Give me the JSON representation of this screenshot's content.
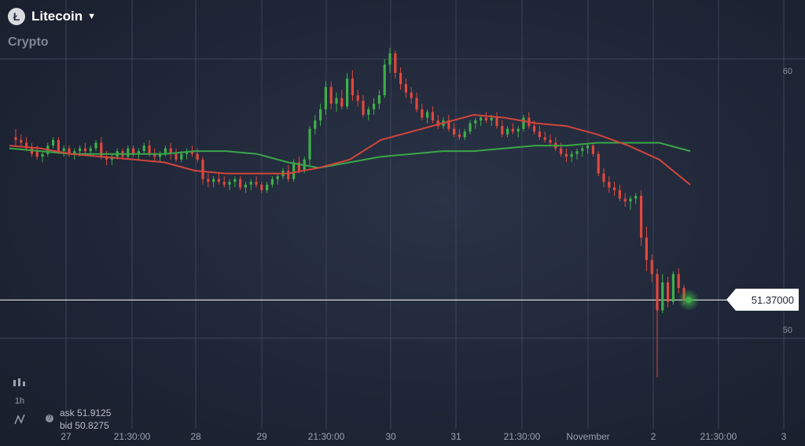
{
  "header": {
    "asset": "Litecoin",
    "category": "Crypto",
    "icon": "litecoin-icon"
  },
  "current_price": "51.37000",
  "quote": {
    "ask_label": "ask",
    "ask": "51.9125",
    "bid_label": "bid",
    "bid": "50.8275"
  },
  "toolbar": {
    "chart_type_icon": "candles-icon",
    "timeframe": "1h",
    "indicator_icon": "indicator-icon"
  },
  "colors": {
    "up": "#3fae49",
    "down": "#e0483c",
    "ma_fast": "#d2453a",
    "ma_slow": "#3aa648",
    "price_line": "#ffffff"
  },
  "chart_data": {
    "type": "candlestick",
    "y_ticks": [
      "60",
      "50"
    ],
    "x_ticks": [
      "27",
      "21:30:00",
      "28",
      "29",
      "21:30:00",
      "30",
      "31",
      "21:30:00",
      "November",
      "2",
      "21:30:00",
      "3"
    ],
    "current_price": 51.37,
    "ma_fast": [
      56.9,
      56.8,
      56.6,
      56.5,
      56.4,
      56.3,
      56.0,
      55.9,
      55.9,
      55.9,
      56.1,
      56.4,
      57.1,
      57.4,
      57.7,
      58.0,
      57.9,
      57.7,
      57.6,
      57.3,
      56.9,
      56.4,
      55.5
    ],
    "ma_slow": [
      56.8,
      56.7,
      56.6,
      56.6,
      56.6,
      56.6,
      56.7,
      56.7,
      56.6,
      56.3,
      56.1,
      56.3,
      56.5,
      56.6,
      56.7,
      56.7,
      56.8,
      56.9,
      56.9,
      57.0,
      57.0,
      57.0,
      56.7
    ],
    "candles": [
      [
        57.2,
        57.5,
        56.9,
        57.1
      ],
      [
        57.1,
        57.3,
        56.9,
        57.0
      ],
      [
        57.0,
        57.2,
        56.7,
        56.8
      ],
      [
        56.8,
        57.0,
        56.5,
        56.6
      ],
      [
        56.7,
        56.9,
        56.4,
        56.5
      ],
      [
        56.5,
        56.7,
        56.3,
        56.6
      ],
      [
        56.6,
        57.0,
        56.5,
        56.9
      ],
      [
        56.9,
        57.2,
        56.8,
        57.1
      ],
      [
        57.1,
        57.2,
        56.6,
        56.7
      ],
      [
        56.7,
        56.9,
        56.5,
        56.8
      ],
      [
        56.8,
        56.9,
        56.5,
        56.6
      ],
      [
        56.6,
        56.8,
        56.4,
        56.7
      ],
      [
        56.7,
        56.9,
        56.5,
        56.8
      ],
      [
        56.8,
        57.0,
        56.6,
        56.7
      ],
      [
        56.7,
        56.9,
        56.5,
        56.8
      ],
      [
        56.8,
        57.1,
        56.7,
        57.0
      ],
      [
        57.0,
        57.2,
        56.4,
        56.5
      ],
      [
        56.5,
        56.7,
        56.2,
        56.4
      ],
      [
        56.4,
        56.6,
        56.2,
        56.5
      ],
      [
        56.5,
        56.8,
        56.4,
        56.7
      ],
      [
        56.7,
        56.8,
        56.4,
        56.5
      ],
      [
        56.5,
        56.9,
        56.4,
        56.8
      ],
      [
        56.8,
        56.9,
        56.5,
        56.6
      ],
      [
        56.6,
        56.8,
        56.4,
        56.7
      ],
      [
        56.7,
        57.0,
        56.6,
        56.9
      ],
      [
        56.9,
        57.1,
        56.5,
        56.6
      ],
      [
        56.6,
        56.8,
        56.3,
        56.5
      ],
      [
        56.5,
        56.7,
        56.3,
        56.6
      ],
      [
        56.6,
        56.9,
        56.5,
        56.8
      ],
      [
        56.8,
        57.0,
        56.4,
        56.6
      ],
      [
        56.6,
        56.8,
        56.3,
        56.4
      ],
      [
        56.4,
        56.7,
        56.3,
        56.6
      ],
      [
        56.6,
        56.8,
        56.4,
        56.7
      ],
      [
        56.7,
        56.9,
        56.5,
        56.6
      ],
      [
        56.6,
        56.8,
        56.3,
        56.4
      ],
      [
        56.4,
        56.5,
        55.5,
        55.7
      ],
      [
        55.7,
        55.9,
        55.4,
        55.6
      ],
      [
        55.6,
        55.8,
        55.4,
        55.7
      ],
      [
        55.7,
        55.9,
        55.5,
        55.6
      ],
      [
        55.6,
        55.8,
        55.4,
        55.5
      ],
      [
        55.5,
        55.7,
        55.3,
        55.6
      ],
      [
        55.6,
        55.8,
        55.4,
        55.7
      ],
      [
        55.7,
        55.8,
        55.3,
        55.4
      ],
      [
        55.4,
        55.6,
        55.2,
        55.5
      ],
      [
        55.5,
        55.7,
        55.3,
        55.6
      ],
      [
        55.6,
        55.8,
        55.4,
        55.5
      ],
      [
        55.5,
        55.6,
        55.2,
        55.3
      ],
      [
        55.3,
        55.6,
        55.2,
        55.5
      ],
      [
        55.5,
        55.8,
        55.4,
        55.7
      ],
      [
        55.7,
        55.9,
        55.5,
        55.8
      ],
      [
        55.8,
        56.1,
        55.7,
        56.0
      ],
      [
        56.0,
        56.2,
        55.6,
        55.7
      ],
      [
        55.7,
        56.4,
        55.6,
        56.3
      ],
      [
        56.3,
        56.5,
        55.9,
        56.0
      ],
      [
        56.0,
        56.5,
        55.9,
        56.4
      ],
      [
        56.4,
        57.6,
        56.2,
        57.5
      ],
      [
        57.5,
        58.0,
        57.3,
        57.8
      ],
      [
        57.8,
        58.4,
        57.6,
        58.2
      ],
      [
        58.2,
        59.2,
        58.0,
        59.0
      ],
      [
        59.0,
        59.2,
        58.2,
        58.4
      ],
      [
        58.4,
        58.8,
        58.1,
        58.6
      ],
      [
        58.6,
        58.9,
        58.2,
        58.3
      ],
      [
        58.3,
        59.5,
        58.2,
        59.3
      ],
      [
        59.3,
        59.6,
        58.5,
        58.7
      ],
      [
        58.7,
        58.9,
        58.3,
        58.5
      ],
      [
        58.5,
        58.7,
        57.9,
        58.0
      ],
      [
        58.0,
        58.3,
        57.8,
        58.2
      ],
      [
        58.2,
        58.6,
        58.0,
        58.4
      ],
      [
        58.4,
        58.9,
        58.2,
        58.7
      ],
      [
        58.7,
        60.0,
        58.6,
        59.8
      ],
      [
        59.8,
        60.4,
        59.5,
        60.2
      ],
      [
        60.2,
        60.3,
        59.3,
        59.5
      ],
      [
        59.5,
        59.7,
        58.9,
        59.1
      ],
      [
        59.1,
        59.3,
        58.6,
        58.8
      ],
      [
        58.8,
        59.0,
        58.4,
        58.6
      ],
      [
        58.6,
        58.8,
        58.1,
        58.2
      ],
      [
        58.2,
        58.4,
        57.8,
        57.9
      ],
      [
        57.9,
        58.2,
        57.7,
        58.1
      ],
      [
        58.1,
        58.3,
        57.7,
        57.8
      ],
      [
        57.8,
        58.0,
        57.5,
        57.6
      ],
      [
        57.6,
        57.9,
        57.5,
        57.8
      ],
      [
        57.8,
        58.0,
        57.4,
        57.5
      ],
      [
        57.5,
        57.7,
        57.2,
        57.3
      ],
      [
        57.3,
        57.5,
        57.1,
        57.2
      ],
      [
        57.2,
        57.5,
        57.1,
        57.4
      ],
      [
        57.4,
        57.8,
        57.3,
        57.7
      ],
      [
        57.7,
        57.9,
        57.5,
        57.8
      ],
      [
        57.8,
        58.0,
        57.6,
        57.9
      ],
      [
        57.9,
        58.1,
        57.7,
        57.8
      ],
      [
        57.8,
        58.0,
        57.6,
        57.9
      ],
      [
        57.9,
        58.1,
        57.5,
        57.6
      ],
      [
        57.6,
        57.8,
        57.2,
        57.3
      ],
      [
        57.3,
        57.6,
        57.2,
        57.5
      ],
      [
        57.5,
        57.7,
        57.3,
        57.4
      ],
      [
        57.4,
        57.6,
        57.2,
        57.5
      ],
      [
        57.5,
        58.0,
        57.4,
        57.9
      ],
      [
        57.9,
        58.1,
        57.5,
        57.6
      ],
      [
        57.6,
        57.8,
        57.3,
        57.4
      ],
      [
        57.4,
        57.6,
        57.1,
        57.2
      ],
      [
        57.2,
        57.4,
        57.0,
        57.1
      ],
      [
        57.1,
        57.3,
        56.9,
        57.0
      ],
      [
        57.0,
        57.2,
        56.7,
        56.8
      ],
      [
        56.8,
        57.0,
        56.5,
        56.6
      ],
      [
        56.6,
        56.8,
        56.3,
        56.5
      ],
      [
        56.5,
        56.7,
        56.3,
        56.6
      ],
      [
        56.6,
        56.8,
        56.4,
        56.7
      ],
      [
        56.7,
        56.9,
        56.5,
        56.8
      ],
      [
        56.8,
        57.0,
        56.6,
        56.9
      ],
      [
        56.9,
        57.0,
        56.5,
        56.6
      ],
      [
        56.6,
        56.7,
        55.8,
        55.9
      ],
      [
        55.9,
        56.1,
        55.4,
        55.6
      ],
      [
        55.6,
        55.8,
        55.2,
        55.4
      ],
      [
        55.4,
        55.6,
        55.1,
        55.3
      ],
      [
        55.3,
        55.5,
        54.9,
        55.0
      ],
      [
        55.0,
        55.2,
        54.7,
        54.9
      ],
      [
        54.9,
        55.1,
        54.6,
        55.0
      ],
      [
        55.0,
        55.2,
        54.8,
        55.1
      ],
      [
        55.1,
        55.3,
        53.3,
        53.6
      ],
      [
        53.6,
        54.0,
        52.4,
        52.8
      ],
      [
        52.8,
        53.0,
        52.0,
        52.3
      ],
      [
        52.3,
        52.5,
        48.6,
        51.0
      ],
      [
        51.0,
        52.3,
        50.9,
        52.0
      ],
      [
        52.0,
        52.2,
        51.1,
        51.3
      ],
      [
        51.3,
        52.4,
        51.2,
        52.3
      ],
      [
        52.3,
        52.5,
        51.6,
        51.8
      ],
      [
        51.8,
        51.9,
        51.2,
        51.37
      ]
    ]
  }
}
